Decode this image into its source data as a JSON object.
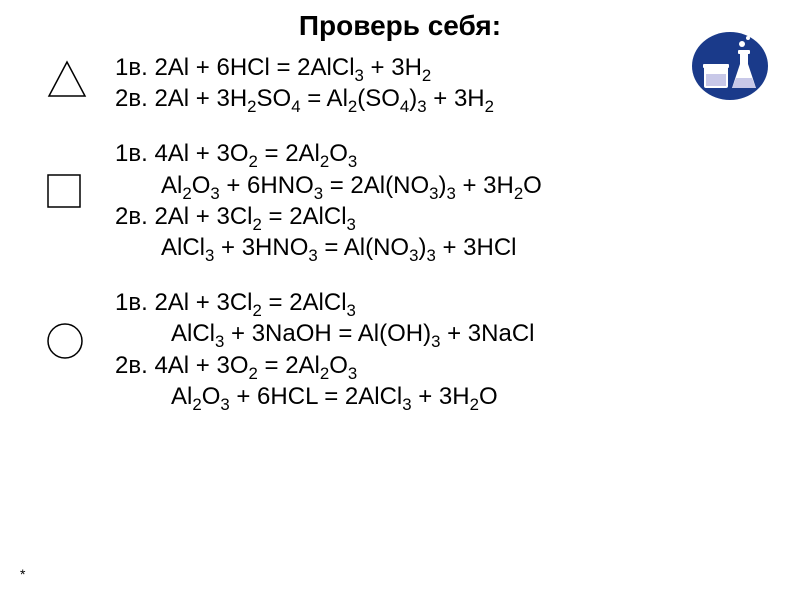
{
  "title": "Проверь себя:",
  "asterisk": "*",
  "logo": {
    "bg_color": "#1a3a8a",
    "object_color": "#ffffff",
    "highlight_color": "#d0d0e0"
  },
  "shapes": {
    "triangle": {
      "stroke": "#000000",
      "fill": "none",
      "size": 44
    },
    "square": {
      "stroke": "#000000",
      "fill": "none",
      "size": 38
    },
    "circle": {
      "stroke": "#000000",
      "fill": "none",
      "size": 40
    }
  },
  "blocks": [
    {
      "shape": "triangle",
      "lines": [
        {
          "label": "1в.",
          "indent": 0,
          "tokens": [
            "2Al",
            " + ",
            "6HCl",
            " = ",
            "2AlCl",
            {
              "sub": "3"
            },
            " + ",
            "3H",
            {
              "sub": "2"
            }
          ]
        },
        {
          "label": "2в.",
          "indent": 0,
          "tokens": [
            "2Al",
            " + ",
            "3H",
            {
              "sub": "2"
            },
            "SO",
            {
              "sub": "4"
            },
            " = ",
            "Al",
            {
              "sub": "2"
            },
            "(SO",
            {
              "sub": "4"
            },
            ")",
            {
              "sub": "3"
            },
            " + ",
            "3H",
            {
              "sub": "2"
            }
          ]
        }
      ]
    },
    {
      "shape": "square",
      "lines": [
        {
          "label": "1в.",
          "indent": 0,
          "tokens": [
            "4Al",
            " + ",
            "3O",
            {
              "sub": "2"
            },
            " = ",
            "2Al",
            {
              "sub": "2"
            },
            "O",
            {
              "sub": "3"
            }
          ]
        },
        {
          "label": "",
          "indent": 1,
          "tokens": [
            "Al",
            {
              "sub": "2"
            },
            "O",
            {
              "sub": "3"
            },
            " + ",
            "6HNO",
            {
              "sub": "3"
            },
            " = ",
            "2Al(NO",
            {
              "sub": "3"
            },
            ")",
            {
              "sub": "3"
            },
            " + ",
            "3H",
            {
              "sub": "2"
            },
            "O"
          ]
        },
        {
          "label": "2в.",
          "indent": 0,
          "tokens": [
            "2Al",
            " + ",
            "3Cl",
            {
              "sub": "2"
            },
            " = ",
            "2AlCl",
            {
              "sub": "3"
            }
          ]
        },
        {
          "label": "",
          "indent": 1,
          "tokens": [
            "AlCl",
            {
              "sub": "3"
            },
            " + ",
            "3HNO",
            {
              "sub": "3"
            },
            " = ",
            "Al(NO",
            {
              "sub": "3"
            },
            ")",
            {
              "sub": "3"
            },
            " + ",
            "3HCl"
          ]
        }
      ]
    },
    {
      "shape": "circle",
      "lines": [
        {
          "label": "1в.",
          "indent": 0,
          "tokens": [
            "2Al",
            " + ",
            "3Cl",
            {
              "sub": "2"
            },
            " = ",
            "2AlCl",
            {
              "sub": "3"
            }
          ]
        },
        {
          "label": "",
          "indent": 2,
          "tokens": [
            "AlCl",
            {
              "sub": "3"
            },
            " + ",
            "3NaOH",
            " = ",
            "Al(OH)",
            {
              "sub": "3"
            },
            " + ",
            "3NaCl"
          ]
        },
        {
          "label": "2в.",
          "indent": 0,
          "tokens": [
            "4Al",
            " + ",
            "3O",
            {
              "sub": "2"
            },
            " = ",
            "2Al",
            {
              "sub": "2"
            },
            "O",
            {
              "sub": "3"
            }
          ]
        },
        {
          "label": "",
          "indent": 3,
          "tokens": [
            "Al",
            {
              "sub": "2"
            },
            "O",
            {
              "sub": "3"
            },
            " + ",
            "6HCL",
            " = ",
            "2AlCl",
            {
              "sub": "3"
            },
            " + ",
            "3H",
            {
              "sub": "2"
            },
            "O"
          ]
        }
      ]
    }
  ]
}
